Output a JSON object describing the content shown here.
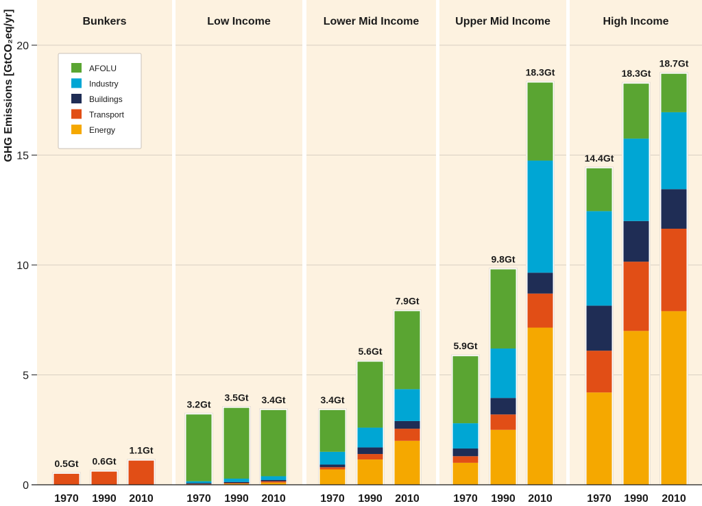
{
  "chart_data": {
    "type": "bar",
    "stacked": true,
    "ylabel": "GHG Emissions [GtCO₂eq/yr]",
    "ylim": [
      0,
      22
    ],
    "yticks": [
      0,
      5,
      10,
      15,
      20
    ],
    "grid": true,
    "legend_position": "top-left",
    "categories": [
      "1970",
      "1990",
      "2010"
    ],
    "series": [
      {
        "name": "AFOLU",
        "color": "#5aa532"
      },
      {
        "name": "Industry",
        "color": "#00a6d4"
      },
      {
        "name": "Buildings",
        "color": "#1f2d55"
      },
      {
        "name": "Transport",
        "color": "#e14e16"
      },
      {
        "name": "Energy",
        "color": "#f5a800"
      }
    ],
    "panels": [
      {
        "title": "Bunkers",
        "totals": [
          "0.5Gt",
          "0.6Gt",
          "1.1Gt"
        ],
        "values": {
          "Energy": [
            0,
            0,
            0
          ],
          "Transport": [
            0.5,
            0.6,
            1.1
          ],
          "Buildings": [
            0,
            0,
            0
          ],
          "Industry": [
            0,
            0,
            0
          ],
          "AFOLU": [
            0,
            0,
            0
          ]
        }
      },
      {
        "title": "Low Income",
        "totals": [
          "3.2Gt",
          "3.5Gt",
          "3.4Gt"
        ],
        "values": {
          "Energy": [
            0.02,
            0.05,
            0.1
          ],
          "Transport": [
            0.02,
            0.03,
            0.06
          ],
          "Buildings": [
            0.04,
            0.05,
            0.06
          ],
          "Industry": [
            0.08,
            0.15,
            0.17
          ],
          "AFOLU": [
            3.04,
            3.22,
            3.01
          ]
        }
      },
      {
        "title": "Lower Mid Income",
        "totals": [
          "3.4Gt",
          "5.6Gt",
          "7.9Gt"
        ],
        "values": {
          "Energy": [
            0.7,
            1.15,
            2.0
          ],
          "Transport": [
            0.1,
            0.25,
            0.55
          ],
          "Buildings": [
            0.12,
            0.3,
            0.35
          ],
          "Industry": [
            0.58,
            0.9,
            1.45
          ],
          "AFOLU": [
            1.9,
            3.0,
            3.55
          ]
        }
      },
      {
        "title": "Upper Mid Income",
        "totals": [
          "5.9Gt",
          "9.8Gt",
          "18.3Gt"
        ],
        "values": {
          "Energy": [
            1.0,
            2.5,
            7.15
          ],
          "Transport": [
            0.3,
            0.7,
            1.55
          ],
          "Buildings": [
            0.35,
            0.75,
            0.95
          ],
          "Industry": [
            1.15,
            2.25,
            5.1
          ],
          "AFOLU": [
            3.05,
            3.6,
            3.55
          ]
        }
      },
      {
        "title": "High Income",
        "totals": [
          "14.4Gt",
          "18.3Gt",
          "18.7Gt"
        ],
        "values": {
          "Energy": [
            4.2,
            7.0,
            7.9
          ],
          "Transport": [
            1.9,
            3.15,
            3.75
          ],
          "Buildings": [
            2.05,
            1.85,
            1.8
          ],
          "Industry": [
            4.3,
            3.75,
            3.5
          ],
          "AFOLU": [
            1.95,
            2.5,
            1.75
          ]
        }
      }
    ]
  }
}
